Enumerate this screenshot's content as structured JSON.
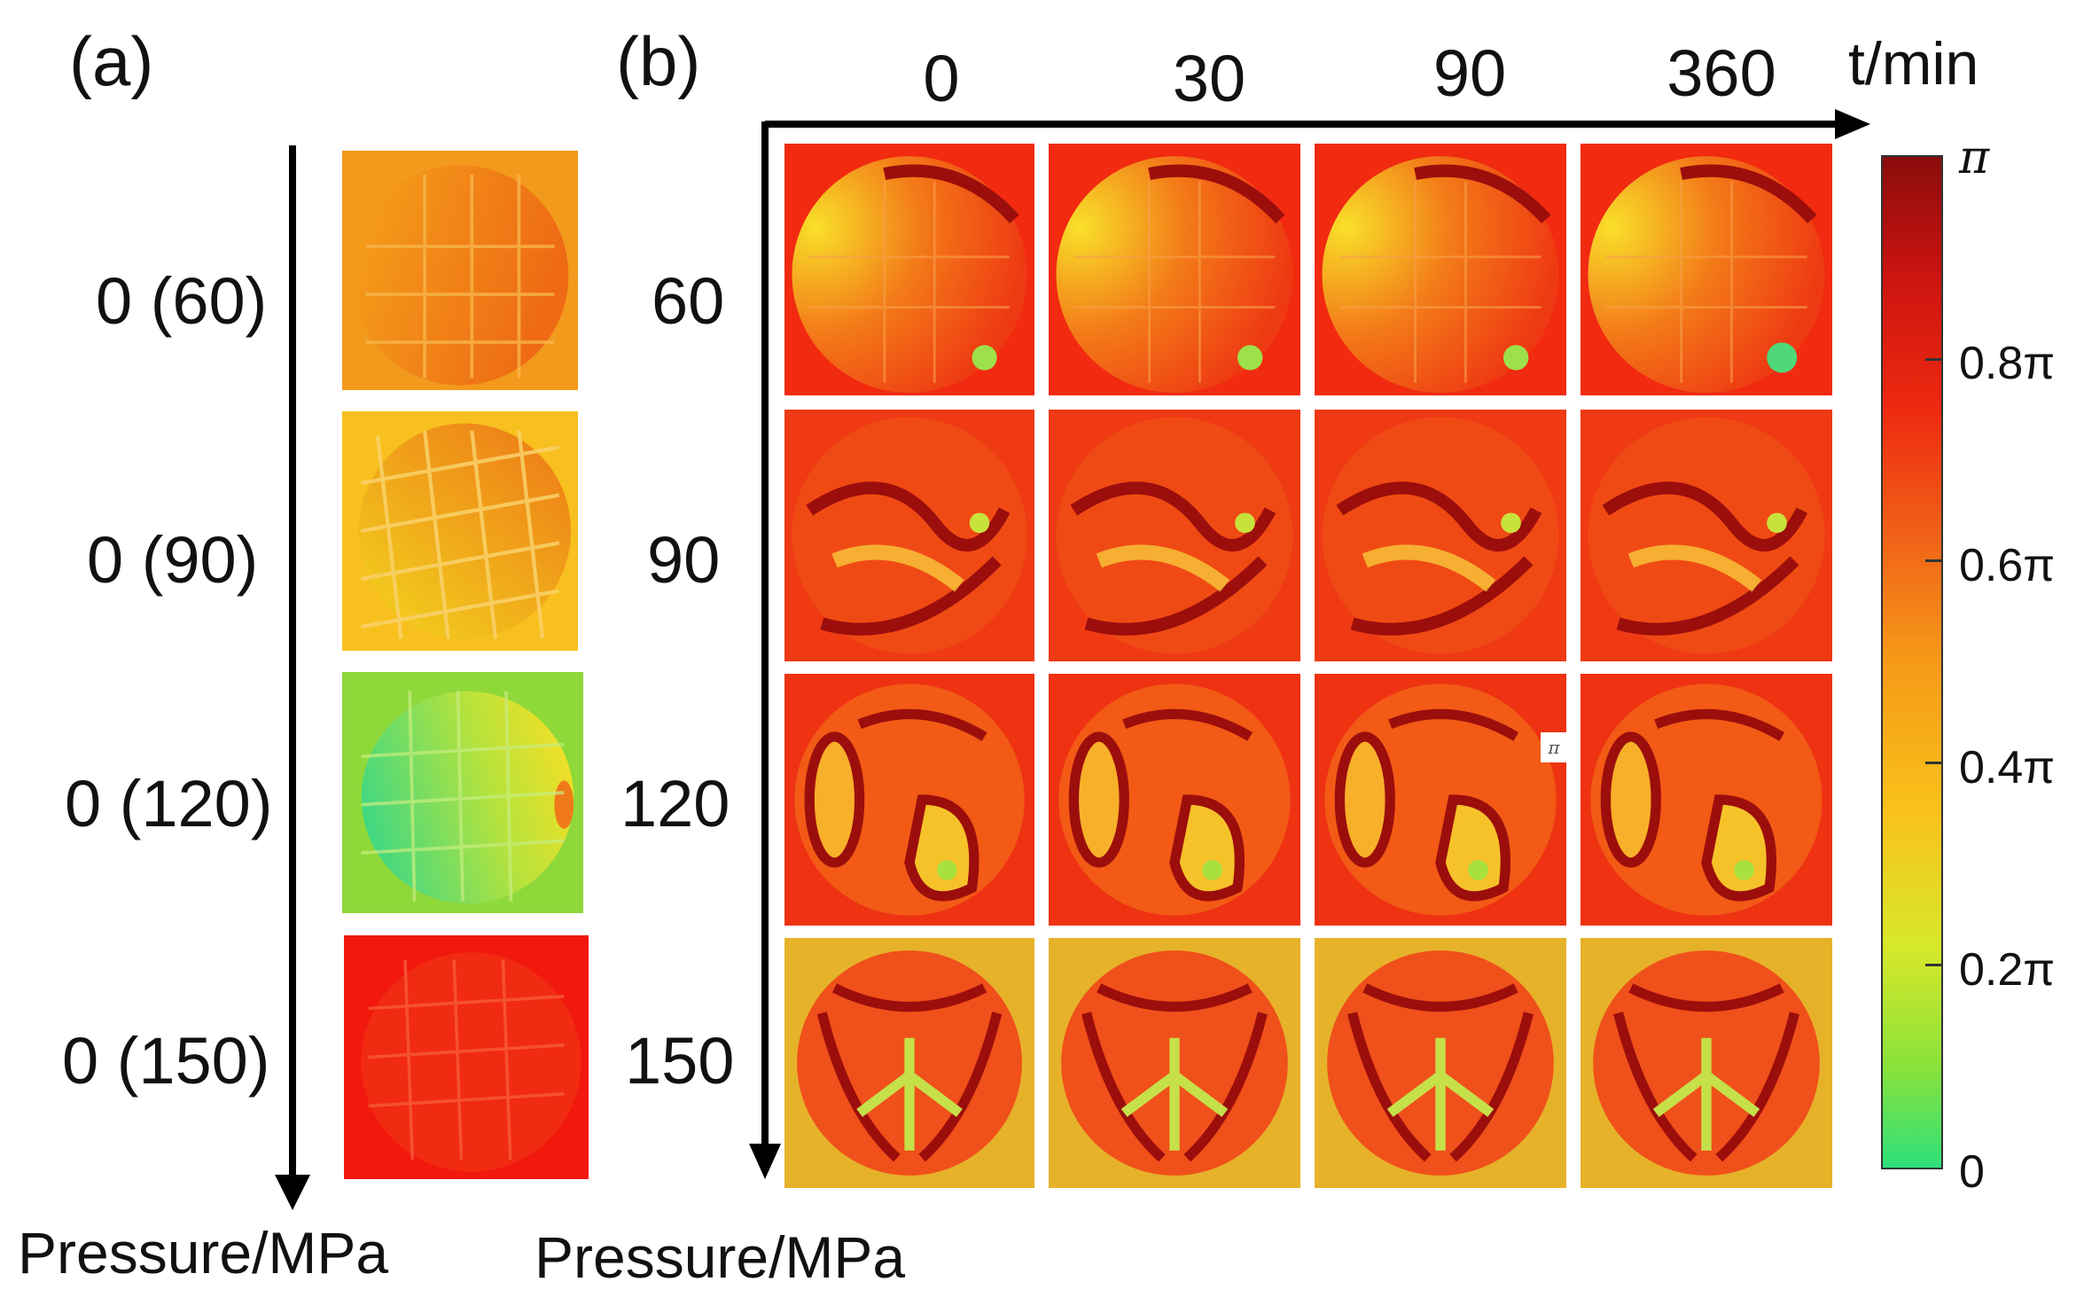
{
  "panels": {
    "a": {
      "label": "(a)",
      "axis_title": "Pressure/MPa",
      "rows": [
        "0 (60)",
        "0 (90)",
        "0 (120)",
        "0 (150)"
      ]
    },
    "b": {
      "label": "(b)",
      "axis_title": "Pressure/MPa",
      "time_axis_title": "t/min",
      "columns": [
        "0",
        "30",
        "90",
        "360"
      ],
      "rows": [
        "60",
        "90",
        "120",
        "150"
      ],
      "inset_symbol": "π"
    }
  },
  "colorbar": {
    "ticks": [
      "π",
      "0.8π",
      "0.6π",
      "0.4π",
      "0.2π",
      "0"
    ],
    "colors": {
      "low": "#2ee07a",
      "mid": "#f69a18",
      "high": "#8a0c0c"
    }
  }
}
